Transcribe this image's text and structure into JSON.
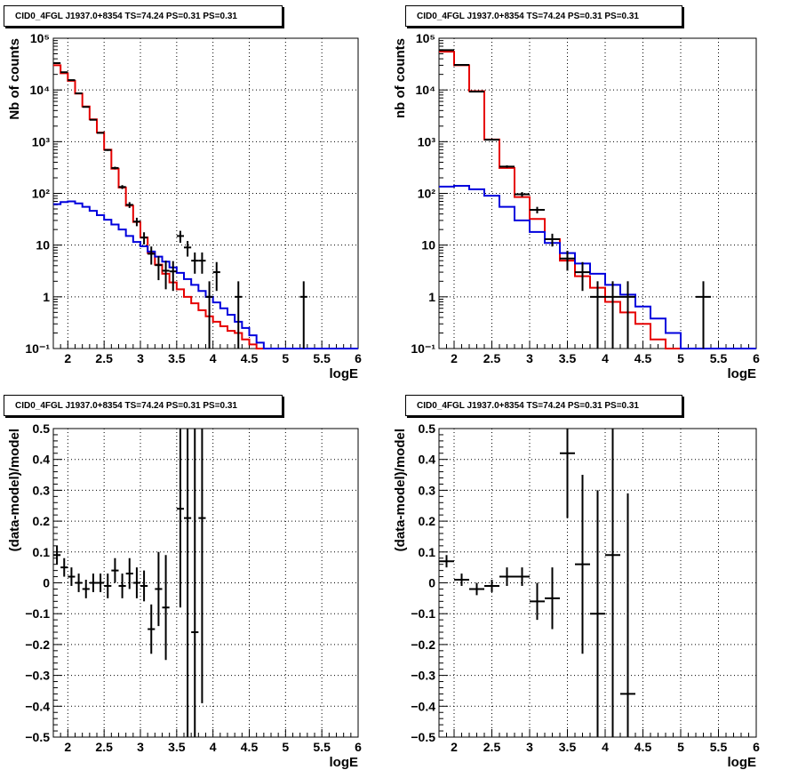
{
  "colors": {
    "data": "#000000",
    "total_model": "#e60000",
    "component_model": "#0000dd",
    "grid": "#000000"
  },
  "chart_data": [
    {
      "type": "line",
      "title": "CID0_4FGL J1937.0+8354 TS=74.24 PS=0.31 PS=0.31",
      "xlabel": "logE",
      "ylabel": "Nb of counts",
      "xlim": [
        1.8,
        6.0
      ],
      "ylim": [
        0.1,
        100000
      ],
      "yscale": "log",
      "grid": true,
      "x_ticks": [
        "2",
        "2.5",
        "3",
        "3.5",
        "4",
        "4.5",
        "5",
        "5.5",
        "6"
      ],
      "y_ticks": [
        "10⁻¹",
        "1",
        "10",
        "10²",
        "10³",
        "10⁴",
        "10⁵"
      ],
      "bin_width": 0.1,
      "series": [
        {
          "role": "total_model",
          "step": true,
          "x": [
            1.85,
            1.95,
            2.05,
            2.15,
            2.25,
            2.35,
            2.45,
            2.55,
            2.65,
            2.75,
            2.85,
            2.95,
            3.05,
            3.15,
            3.25,
            3.35,
            3.45,
            3.55,
            3.65,
            3.75,
            3.85,
            3.95,
            4.05,
            4.15,
            4.25,
            4.35,
            4.45,
            4.55,
            4.65,
            4.75,
            4.85,
            4.95,
            5.05,
            5.15,
            5.25,
            5.35,
            5.45,
            5.55,
            5.65,
            5.75,
            5.85,
            5.95
          ],
          "y": [
            30000,
            21000,
            15000,
            8500,
            4800,
            2700,
            1500,
            700,
            300,
            130,
            58,
            28,
            14,
            7,
            4.2,
            2.8,
            1.9,
            1.4,
            1.0,
            0.75,
            0.55,
            0.42,
            0.33,
            0.27,
            0.22,
            0.2,
            0.15,
            0.12,
            0.1,
            0.1,
            0.1,
            0.1,
            0.1,
            0.1,
            0.1,
            0.1,
            0.1,
            0.1,
            0.1,
            0.1,
            0.1,
            0.1
          ]
        },
        {
          "role": "component_model",
          "step": true,
          "x": [
            1.85,
            1.95,
            2.05,
            2.15,
            2.25,
            2.35,
            2.45,
            2.55,
            2.65,
            2.75,
            2.85,
            2.95,
            3.05,
            3.15,
            3.25,
            3.35,
            3.45,
            3.55,
            3.65,
            3.75,
            3.85,
            3.95,
            4.05,
            4.15,
            4.25,
            4.35,
            4.45,
            4.55,
            4.65,
            4.75,
            4.85,
            4.95,
            5.05,
            5.15,
            5.25,
            5.35,
            5.45,
            5.55,
            5.65,
            5.75,
            5.85,
            5.95
          ],
          "y": [
            62,
            68,
            70,
            64,
            55,
            46,
            38,
            31,
            25,
            20,
            15,
            11.5,
            9.5,
            7.5,
            6,
            4.8,
            3.7,
            2.9,
            2.2,
            1.7,
            1.3,
            1.0,
            0.78,
            0.6,
            0.45,
            0.33,
            0.25,
            0.18,
            0.13,
            0.1,
            0.1,
            0.1,
            0.1,
            0.1,
            0.1,
            0.1,
            0.1,
            0.1,
            0.1,
            0.1,
            0.1,
            0.1
          ]
        },
        {
          "role": "data",
          "points": true,
          "x": [
            1.85,
            1.95,
            2.05,
            2.15,
            2.25,
            2.35,
            2.45,
            2.55,
            2.65,
            2.75,
            2.85,
            2.95,
            3.05,
            3.15,
            3.25,
            3.35,
            3.45,
            3.55,
            3.65,
            3.75,
            3.85,
            3.95,
            4.05,
            4.35,
            5.25
          ],
          "y": [
            33000,
            22000,
            15500,
            8600,
            4700,
            2650,
            1480,
            690,
            310,
            133,
            60,
            28.5,
            14,
            6.8,
            4.1,
            3.2,
            3.1,
            15,
            9,
            5,
            5,
            1,
            3,
            1,
            1
          ],
          "yerr": [
            180,
            150,
            125,
            93,
            69,
            51,
            38,
            26,
            18,
            11.5,
            7.7,
            5.3,
            3.7,
            2.6,
            2.0,
            1.8,
            1.8,
            3.9,
            3.0,
            2.2,
            2.2,
            1,
            1.7,
            1,
            1
          ]
        }
      ]
    },
    {
      "type": "line",
      "title": "CID0_4FGL J1937.0+8354 TS=74.24 PS=0.31 PS=0.31",
      "xlabel": "logE",
      "ylabel": "nb of counts",
      "xlim": [
        1.8,
        6.0
      ],
      "ylim": [
        0.1,
        100000
      ],
      "yscale": "log",
      "grid": true,
      "x_ticks": [
        "2",
        "2.5",
        "3",
        "3.5",
        "4",
        "4.5",
        "5",
        "5.5",
        "6"
      ],
      "y_ticks": [
        "10⁻¹",
        "1",
        "10",
        "10²",
        "10³",
        "10⁴",
        "10⁵"
      ],
      "bin_width": 0.2,
      "series": [
        {
          "role": "total_model",
          "step": true,
          "x": [
            1.9,
            2.1,
            2.3,
            2.5,
            2.7,
            2.9,
            3.1,
            3.3,
            3.5,
            3.7,
            3.9,
            4.1,
            4.3,
            4.5,
            4.7,
            4.9,
            5.1,
            5.3,
            5.5,
            5.7,
            5.9
          ],
          "y": [
            55000,
            30000,
            9500,
            1100,
            310,
            85,
            32,
            13,
            5,
            2.5,
            1.5,
            0.8,
            0.5,
            0.3,
            0.15,
            0.1,
            0.1,
            0.1,
            0.1,
            0.1,
            0.1
          ]
        },
        {
          "role": "component_model",
          "step": true,
          "x": [
            1.9,
            2.1,
            2.3,
            2.5,
            2.7,
            2.9,
            3.1,
            3.3,
            3.5,
            3.7,
            3.9,
            4.1,
            4.3,
            4.5,
            4.7,
            4.9,
            5.1,
            5.3,
            5.5,
            5.7,
            5.9
          ],
          "y": [
            135,
            140,
            120,
            90,
            55,
            30,
            18,
            11,
            7,
            4.4,
            2.8,
            1.7,
            1.1,
            0.65,
            0.38,
            0.2,
            0.1,
            0.1,
            0.1,
            0.1,
            0.1
          ]
        },
        {
          "role": "data",
          "points": true,
          "x": [
            1.9,
            2.1,
            2.3,
            2.5,
            2.7,
            2.9,
            3.1,
            3.3,
            3.5,
            3.7,
            3.9,
            4.1,
            4.3,
            5.3
          ],
          "y": [
            59000,
            30500,
            9300,
            1090,
            330,
            96,
            48,
            13,
            5.5,
            3,
            1,
            1,
            1,
            1
          ],
          "yerr": [
            240,
            175,
            96,
            33,
            18,
            9.8,
            6.9,
            3.6,
            2.3,
            1.7,
            1,
            1,
            1,
            1
          ]
        }
      ]
    },
    {
      "type": "scatter",
      "title": "CID0_4FGL J1937.0+8354 TS=74.24 PS=0.31 PS=0.31",
      "xlabel": "logE",
      "ylabel": "(data-model)/model",
      "xlim": [
        1.8,
        6.0
      ],
      "ylim": [
        -0.5,
        0.5
      ],
      "grid": true,
      "x_ticks": [
        "2",
        "2.5",
        "3",
        "3.5",
        "4",
        "4.5",
        "5",
        "5.5",
        "6"
      ],
      "y_ticks": [
        "−0.5",
        "−0.4",
        "−0.3",
        "−0.2",
        "−0.1",
        "0",
        "0.1",
        "0.2",
        "0.3",
        "0.4",
        "0.5"
      ],
      "bin_width": 0.1,
      "series": [
        {
          "role": "data",
          "x": [
            1.85,
            1.95,
            2.05,
            2.15,
            2.25,
            2.35,
            2.45,
            2.55,
            2.65,
            2.75,
            2.85,
            2.95,
            3.05,
            3.15,
            3.25,
            3.35,
            3.55,
            3.65,
            3.75,
            3.85
          ],
          "y": [
            0.09,
            0.05,
            0.02,
            0.0,
            -0.02,
            0.0,
            0.0,
            -0.01,
            0.04,
            -0.01,
            0.03,
            0.0,
            -0.01,
            -0.15,
            -0.02,
            -0.08,
            0.24,
            0.21,
            -0.16,
            0.21
          ],
          "yerr": [
            0.03,
            0.03,
            0.03,
            0.03,
            0.03,
            0.03,
            0.03,
            0.04,
            0.04,
            0.04,
            0.05,
            0.05,
            0.05,
            0.08,
            0.12,
            0.17,
            0.32,
            0.8,
            0.9,
            0.6
          ]
        }
      ]
    },
    {
      "type": "scatter",
      "title": "CID0_4FGL J1937.0+8354 TS=74.24 PS=0.31 PS=0.31",
      "xlabel": "logE",
      "ylabel": "(data-model)/model",
      "xlim": [
        1.8,
        6.0
      ],
      "ylim": [
        -0.5,
        0.5
      ],
      "grid": true,
      "x_ticks": [
        "2",
        "2.5",
        "3",
        "3.5",
        "4",
        "4.5",
        "5",
        "5.5",
        "6"
      ],
      "y_ticks": [
        "−0.5",
        "−0.4",
        "−0.3",
        "−0.2",
        "−0.1",
        "0",
        "0.1",
        "0.2",
        "0.3",
        "0.4",
        "0.5"
      ],
      "bin_width": 0.2,
      "series": [
        {
          "role": "data",
          "x": [
            1.9,
            2.1,
            2.3,
            2.5,
            2.7,
            2.9,
            3.1,
            3.3,
            3.5,
            3.7,
            3.9,
            4.1,
            4.3
          ],
          "y": [
            0.07,
            0.01,
            -0.02,
            -0.01,
            0.02,
            0.02,
            -0.06,
            -0.05,
            0.42,
            0.06,
            -0.1,
            0.09,
            -0.36
          ],
          "yerr": [
            0.02,
            0.02,
            0.02,
            0.02,
            0.03,
            0.03,
            0.06,
            0.1,
            0.21,
            0.29,
            0.4,
            0.9,
            0.65
          ]
        }
      ]
    }
  ]
}
